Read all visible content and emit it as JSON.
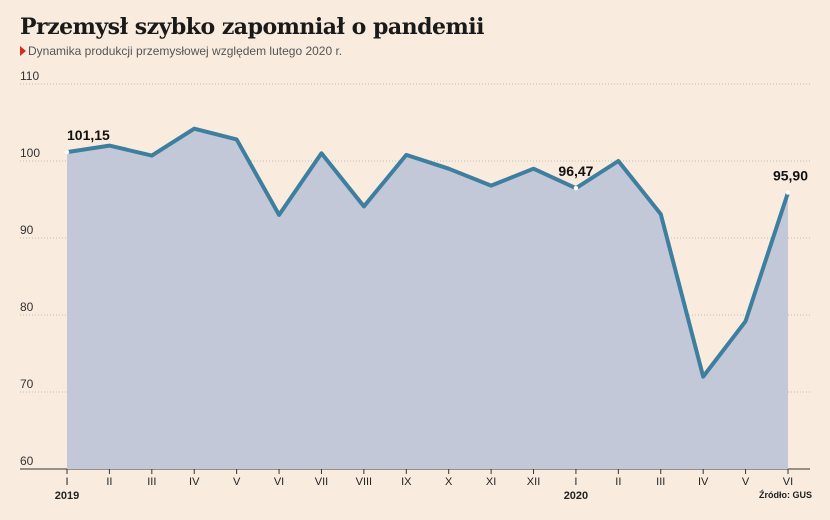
{
  "header": {
    "title": "Przemysł szybko zapomniał o pandemii",
    "subtitle": "Dynamika produkcji przemysłowej względem lutego 2020 r."
  },
  "source": "Źródło: GUS",
  "colors": {
    "background": "#f9ecdf",
    "line": "#3e7fa0",
    "area": "#c2c8d8",
    "marker": "#d62b1f"
  },
  "chart_data": {
    "type": "area",
    "categories": [
      "I",
      "II",
      "III",
      "IV",
      "V",
      "VI",
      "VII",
      "VIII",
      "IX",
      "X",
      "XI",
      "XII",
      "I",
      "II",
      "III",
      "IV",
      "V",
      "VI"
    ],
    "year_labels": [
      {
        "index": 0,
        "text": "2019"
      },
      {
        "index": 12,
        "text": "2020"
      }
    ],
    "values": [
      101.15,
      102.0,
      100.7,
      104.2,
      102.8,
      93.0,
      101.0,
      94.1,
      100.8,
      99.0,
      96.8,
      99.0,
      96.47,
      100.0,
      93.1,
      72.0,
      79.2,
      95.9
    ],
    "ylim": [
      60,
      110
    ],
    "yticks": [
      60,
      70,
      80,
      90,
      100,
      110
    ],
    "grid": true,
    "annotations": [
      {
        "index": 0,
        "text": "101,15"
      },
      {
        "index": 12,
        "text": "96,47"
      },
      {
        "index": 17,
        "text": "95,90"
      }
    ]
  }
}
